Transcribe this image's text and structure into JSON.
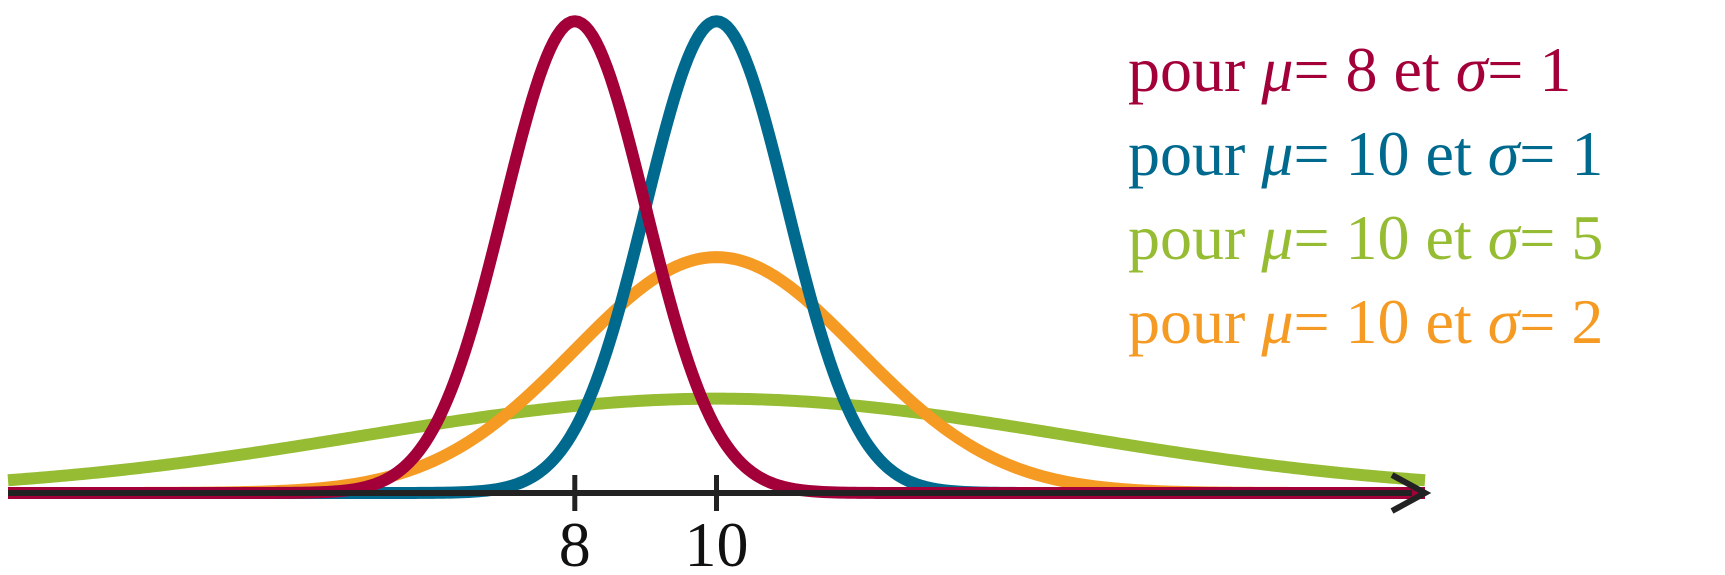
{
  "chart_data": {
    "type": "line",
    "title": "",
    "xlabel": "",
    "ylabel": "",
    "xlim": [
      0,
      20
    ],
    "ylim": [
      0,
      0.4
    ],
    "x_ticks": [
      "8",
      "10"
    ],
    "axis_color": "#222222",
    "series": [
      {
        "name_prefix": "pour ",
        "mu_symbol": "μ",
        "mu_value": "= 8",
        "mid": " et ",
        "sigma_symbol": "σ",
        "sigma_value": "= 1",
        "mu": 8,
        "sigma": 1,
        "color": "#A3003A"
      },
      {
        "name_prefix": "pour ",
        "mu_symbol": "μ",
        "mu_value": "= 10",
        "mid": " et ",
        "sigma_symbol": "σ",
        "sigma_value": "= 1",
        "mu": 10,
        "sigma": 1,
        "color": "#006A8E"
      },
      {
        "name_prefix": "pour ",
        "mu_symbol": "μ",
        "mu_value": "= 10",
        "mid": " et ",
        "sigma_symbol": "σ",
        "sigma_value": "= 5",
        "mu": 10,
        "sigma": 5,
        "color": "#95BC32"
      },
      {
        "name_prefix": "pour ",
        "mu_symbol": "μ",
        "mu_value": "= 10",
        "mid": " et ",
        "sigma_symbol": "σ",
        "sigma_value": "= 2",
        "mu": 10,
        "sigma": 2,
        "color": "#F59A23"
      }
    ]
  }
}
